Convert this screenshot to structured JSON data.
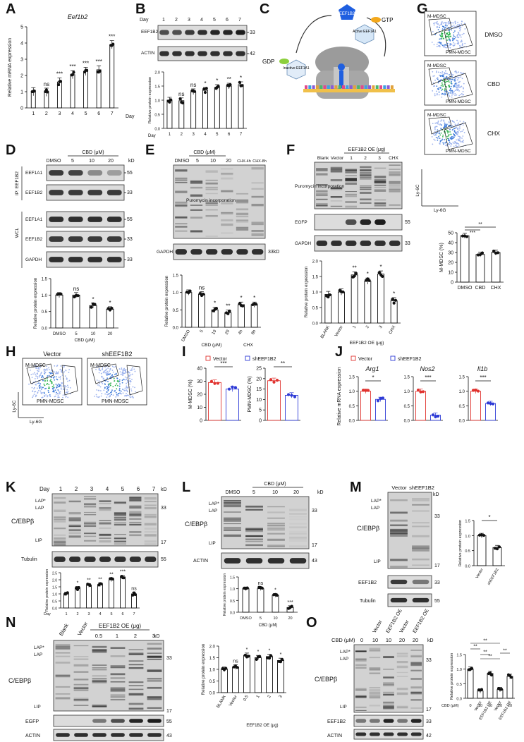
{
  "panels": {
    "A": {
      "letter": "A",
      "title": "Eef1b2",
      "ylabel": "Relative mRNA expression",
      "xlabel": "Day",
      "days": [
        "1",
        "2",
        "3",
        "4",
        "5",
        "6",
        "7"
      ],
      "values": [
        1.0,
        0.97,
        1.6,
        2.05,
        2.25,
        2.35,
        3.9
      ],
      "signif": [
        "",
        "ns",
        "***",
        "***",
        "***",
        "***",
        "***"
      ],
      "yticks": [
        "0",
        "1",
        "2",
        "3",
        "4",
        "5"
      ],
      "ylim": [
        0,
        5
      ]
    },
    "B": {
      "letter": "B",
      "day_label": "Day",
      "days": [
        "1",
        "2",
        "3",
        "4",
        "5",
        "6",
        "7"
      ],
      "blots": [
        {
          "label": "EEF1B2",
          "kd": "33"
        },
        {
          "label": "ACTIN",
          "kd": "42"
        }
      ],
      "ylabel": "Relative protein expression",
      "values": [
        1.0,
        0.98,
        1.3,
        1.35,
        1.45,
        1.5,
        1.55
      ],
      "signif": [
        "",
        "ns",
        "ns",
        "*",
        "*",
        "**",
        "*"
      ],
      "yticks": [
        "0.0",
        "0.5",
        "1.0",
        "1.5",
        "2.0"
      ],
      "ylim": [
        0,
        2
      ]
    },
    "C": {
      "letter": "C",
      "labels": {
        "eef1b2": "EEF1B2",
        "gtp": "GTP",
        "gdp": "GDP",
        "active": "Active EEF1A1",
        "inactive": "Inactive EEF1A1"
      }
    },
    "D": {
      "letter": "D",
      "treatment": "CBD (μM)",
      "lanes": [
        "DMSO",
        "5",
        "10",
        "20"
      ],
      "kd_label": "kD",
      "group_ip": "IP: EEF1B2",
      "group_wcl": "WCL",
      "blots": [
        {
          "label": "EEF1A1",
          "kd": "55"
        },
        {
          "label": "EEF1B2",
          "kd": "33"
        },
        {
          "label": "EEF1A1",
          "kd": "55"
        },
        {
          "label": "EEF1B2",
          "kd": "33"
        },
        {
          "label": "GAPDH",
          "kd": "33"
        }
      ],
      "ylabel": "Relative protein expression",
      "values": [
        1.0,
        1.0,
        0.68,
        0.57
      ],
      "signif": [
        "",
        "ns",
        "*",
        "*"
      ],
      "yticks": [
        "0.0",
        "0.5",
        "1.0",
        "1.5"
      ],
      "ylim": [
        0,
        1.5
      ]
    },
    "E": {
      "letter": "E",
      "treatment": "CBD (μM)",
      "lanes": [
        "DMSO",
        "5",
        "10",
        "20",
        "CHX-4h",
        "CHX-8h"
      ],
      "blots": [
        {
          "label": "Puromycin incorporation",
          "kd": ""
        },
        {
          "label": "GAPDH",
          "kd": "33kD"
        }
      ],
      "ylabel": "Relative protein expression",
      "categories": [
        "DMSO",
        "5",
        "10",
        "20",
        "4h",
        "8h"
      ],
      "group_cbd": "CBD (μM)",
      "group_chx": "CHX",
      "values": [
        1.0,
        0.95,
        0.5,
        0.42,
        0.65,
        0.65
      ],
      "signif": [
        "",
        "ns",
        "*",
        "**",
        "*",
        "*"
      ],
      "yticks": [
        "0.0",
        "0.5",
        "1.0",
        "1.5"
      ],
      "ylim": [
        0,
        1.5
      ]
    },
    "F": {
      "letter": "F",
      "treatment": "EEF1B2 OE (μg)",
      "lanes": [
        "Blank",
        "Vector",
        "1",
        "2",
        "3",
        "CHX"
      ],
      "blots": [
        {
          "label": "Puromycin incorporation",
          "kd": ""
        },
        {
          "label": "EGFP",
          "kd": "55"
        },
        {
          "label": "GAPDH",
          "kd": "33"
        }
      ],
      "ylabel": "Relative protein expression",
      "categories": [
        "BLANK",
        "Vector",
        "1",
        "2",
        "3",
        "CHX"
      ],
      "group_oe": "EEF1B2 OE (μg)",
      "values": [
        0.92,
        1.0,
        1.55,
        1.35,
        1.58,
        0.72
      ],
      "signif": [
        "",
        "",
        "**",
        "*",
        "*",
        "*"
      ],
      "yticks": [
        "0.0",
        "0.5",
        "1.0",
        "1.5",
        "2.0"
      ],
      "ylim": [
        0,
        2
      ]
    },
    "G": {
      "letter": "G",
      "conditions": [
        "DMSO",
        "CBD",
        "CHX"
      ],
      "gate_m": "M-MDSC",
      "gate_pmn": "PMN-MDSC",
      "yaxis": "Ly-6C",
      "xaxis": "Ly-6G",
      "ylabel": "M-MDSC (%)",
      "categories": [
        "DMSO",
        "CBD",
        "CHX"
      ],
      "values": [
        47,
        28,
        30
      ],
      "signif_pairs": [
        "***",
        "**"
      ],
      "yticks": [
        "0",
        "10",
        "20",
        "30",
        "40",
        "50"
      ],
      "ylim": [
        0,
        50
      ]
    },
    "H": {
      "letter": "H",
      "conditions": [
        "Vector",
        "shEEF1B2"
      ],
      "gate_m": "M-MDSC",
      "gate_pmn": "PMN-MDSC",
      "yaxis": "Ly-6C",
      "xaxis": "Ly-6G"
    },
    "I": {
      "letter": "I",
      "legend": [
        "Vector",
        "shEEF1B2"
      ],
      "charts": [
        {
          "ylabel": "M-MDSC (%)",
          "values": [
            29,
            24
          ],
          "signif": "***",
          "yticks": [
            "0",
            "10",
            "20",
            "30",
            "40"
          ],
          "ylim": [
            0,
            40
          ]
        },
        {
          "ylabel": "PMN-MDSC (%)",
          "values": [
            19,
            12
          ],
          "signif": "**",
          "yticks": [
            "0",
            "5",
            "10",
            "15",
            "20",
            "25"
          ],
          "ylim": [
            0,
            25
          ]
        }
      ]
    },
    "J": {
      "letter": "J",
      "legend": [
        "Vector",
        "shEEF1B2"
      ],
      "ylabel": "Relative mRNA expression",
      "charts": [
        {
          "gene": "Arg1",
          "values": [
            1.0,
            0.72
          ],
          "signif": "*"
        },
        {
          "gene": "Nos2",
          "values": [
            1.0,
            0.18
          ],
          "signif": "***"
        },
        {
          "gene": "Il1b",
          "values": [
            1.0,
            0.58
          ],
          "signif": "***"
        }
      ],
      "yticks": [
        "0.0",
        "0.5",
        "1.0",
        "1.5"
      ],
      "ylim": [
        0,
        1.5
      ]
    },
    "K": {
      "letter": "K",
      "day_label": "Day",
      "days": [
        "1",
        "2",
        "3",
        "4",
        "5",
        "6",
        "7"
      ],
      "kd_label": "kD",
      "protein": "C/EBPβ",
      "isoforms": [
        "LAP*",
        "LAP",
        "LIP"
      ],
      "kd_marks": [
        "33",
        "17",
        "55"
      ],
      "loading": "Tubulin",
      "ylabel": "Relative protein expression",
      "values": [
        1.0,
        1.4,
        1.6,
        1.65,
        2.0,
        2.2,
        1.0
      ],
      "signif": [
        "",
        "*",
        "**",
        "**",
        "**",
        "***",
        "ns"
      ],
      "yticks": [
        "0.0",
        "0.5",
        "1.0",
        "1.5",
        "2.0",
        "2.5"
      ],
      "ylim": [
        0,
        2.5
      ]
    },
    "L": {
      "letter": "L",
      "treatment": "CBD (μM)",
      "lanes": [
        "DMSO",
        "5",
        "10",
        "20"
      ],
      "kd_label": "kD",
      "protein": "C/EBPβ",
      "isoforms": [
        "LAP*",
        "LAP",
        "LIP"
      ],
      "kd_marks": [
        "33",
        "17",
        "43"
      ],
      "loading": "ACTIN",
      "ylabel": "Relative protein expression",
      "categories": [
        "DMSO",
        "5",
        "10",
        "20"
      ],
      "xlabel": "CBD (μM)",
      "values": [
        1.0,
        1.0,
        0.72,
        0.2
      ],
      "signif": [
        "",
        "ns",
        "*",
        "***"
      ],
      "yticks": [
        "0.0",
        "0.5",
        "1.0",
        "1.5"
      ],
      "ylim": [
        0,
        1.5
      ]
    },
    "M": {
      "letter": "M",
      "lanes": [
        "Vector",
        "shEEF1B2"
      ],
      "kd_label": "kD",
      "protein": "C/EBPβ",
      "isoforms": [
        "LAP*",
        "LAP",
        "LIP"
      ],
      "blots": [
        {
          "label": "EEF1B2",
          "kd": "33"
        },
        {
          "label": "Tubulin",
          "kd": "55"
        }
      ],
      "kd_marks": [
        "33",
        "17"
      ],
      "ylabel": "Relative protein expression",
      "categories": [
        "Vector",
        "shEEF1B2"
      ],
      "values": [
        1.0,
        0.6
      ],
      "signif": "*",
      "yticks": [
        "0.0",
        "0.5",
        "1.0",
        "1.5"
      ],
      "ylim": [
        0,
        1.5
      ]
    },
    "N": {
      "letter": "N",
      "treatment": "EEF1B2 OE (μg)",
      "lanes": [
        "Blank",
        "Vector",
        "0.5",
        "1",
        "2",
        "3"
      ],
      "kd_label": "kD",
      "protein": "C/EBPβ",
      "isoforms": [
        "LAP*",
        "LAP",
        "LIP"
      ],
      "kd_marks": [
        "33",
        "17",
        "55",
        "43"
      ],
      "blots": [
        {
          "label": "EGFP"
        },
        {
          "label": "ACTIN"
        }
      ],
      "ylabel": "Relative protein expression",
      "categories": [
        "BLANK",
        "Vector",
        "0.5",
        "1",
        "2",
        "3"
      ],
      "xlabel": "EEF1B2 OE (μg)",
      "values": [
        1.0,
        1.1,
        1.6,
        1.5,
        1.55,
        1.38
      ],
      "signif": [
        "",
        "ns",
        "*",
        "*",
        "*",
        "*"
      ],
      "yticks": [
        "0.0",
        "0.5",
        "1.0",
        "1.5",
        "2.0"
      ],
      "ylim": [
        0,
        2
      ]
    },
    "O": {
      "letter": "O",
      "treatment": "CBD (μM)",
      "cbd_doses": [
        "0",
        "10",
        "10",
        "20",
        "20"
      ],
      "lane_labels": [
        "Vector",
        "EEF1B2 OE",
        "Vector",
        "EEF1B2 OE"
      ],
      "kd_label": "kD",
      "protein": "C/EBPβ",
      "isoforms": [
        "LAP*",
        "LAP",
        "LIP"
      ],
      "kd_marks": [
        "33",
        "17",
        "33",
        "42"
      ],
      "blots": [
        {
          "label": "EEF1B2"
        },
        {
          "label": "ACTIN"
        }
      ],
      "ylabel": "Relative protein expression",
      "cbd_row_label": "CBD (μM)",
      "categories_dose": [
        "0",
        "10",
        "10",
        "20",
        "20"
      ],
      "categories": [
        "",
        "Vector",
        "EEF1B2 OE",
        "Vector",
        "EEF1B2 OE"
      ],
      "values": [
        1.0,
        0.25,
        0.85,
        0.3,
        0.75
      ],
      "signif": [
        "**",
        "**",
        "**",
        "**",
        "**"
      ],
      "yticks": [
        "0.0",
        "0.5",
        "1.0",
        "1.5"
      ],
      "ylim": [
        0,
        1.5
      ]
    }
  }
}
